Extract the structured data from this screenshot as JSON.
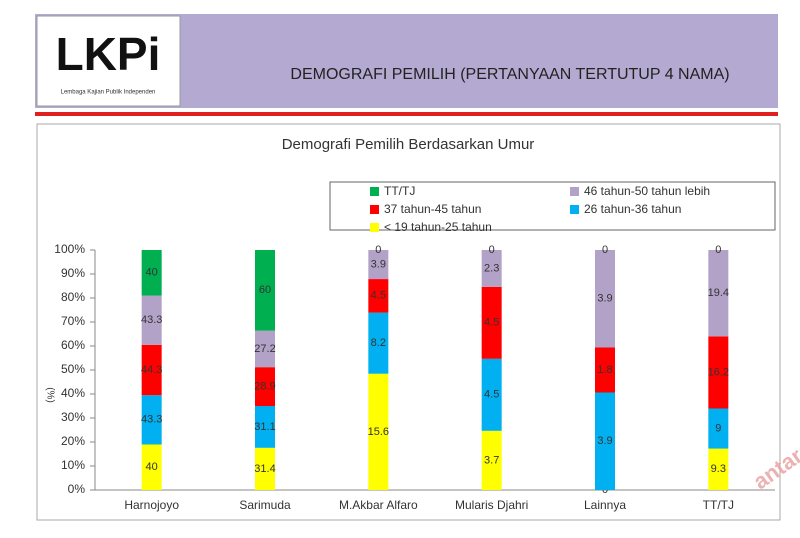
{
  "header": {
    "logo": "LKPi",
    "logo_caption": "Lembaga Kajian Publik Independen",
    "title": "DEMOGRAFI  PEMILIH (PERTANYAAN TERTUTUP 4 NAMA)"
  },
  "watermark": "antaran",
  "chart_data": {
    "type": "bar",
    "stack": "percent",
    "title": "Demografi Pemilih Berdasarkan Umur",
    "y_label": "(%)",
    "categories": [
      "Harnojoyo",
      "Sarimuda",
      "M.Akbar Alfaro",
      "Mularis Djahri",
      "Lainnya",
      "TT/TJ"
    ],
    "series": [
      {
        "name": "< 19 tahun-25 tahun",
        "color": "#ffff00",
        "values": [
          40,
          31.4,
          15.6,
          3.7,
          0,
          9.3
        ]
      },
      {
        "name": "26 tahun-36 tahun",
        "color": "#00b0f0",
        "values": [
          43.3,
          31.1,
          8.2,
          4.5,
          3.9,
          9
        ]
      },
      {
        "name": "37 tahun-45 tahun",
        "color": "#ff0000",
        "values": [
          44.3,
          28.9,
          4.5,
          4.5,
          1.8,
          16.2
        ]
      },
      {
        "name": "46 tahun-50  tahun lebih",
        "color": "#b3a2c7",
        "values": [
          43.3,
          27.2,
          3.9,
          2.3,
          3.9,
          19.4
        ]
      },
      {
        "name": "TT/TJ",
        "color": "#00b050",
        "values": [
          40,
          60,
          0,
          0,
          0,
          0
        ]
      }
    ],
    "ylim": [
      0,
      100
    ],
    "yticks": [
      {
        "value": 0,
        "label": "0%"
      },
      {
        "value": 10,
        "label": "10%"
      },
      {
        "value": 20,
        "label": "20%"
      },
      {
        "value": 30,
        "label": "30%"
      },
      {
        "value": 40,
        "label": "40%"
      },
      {
        "value": 50,
        "label": "50%"
      },
      {
        "value": 60,
        "label": "60%"
      },
      {
        "value": 70,
        "label": "70%"
      },
      {
        "value": 80,
        "label": "80%"
      },
      {
        "value": 90,
        "label": "90%"
      },
      {
        "value": 100,
        "label": "100%"
      }
    ]
  }
}
